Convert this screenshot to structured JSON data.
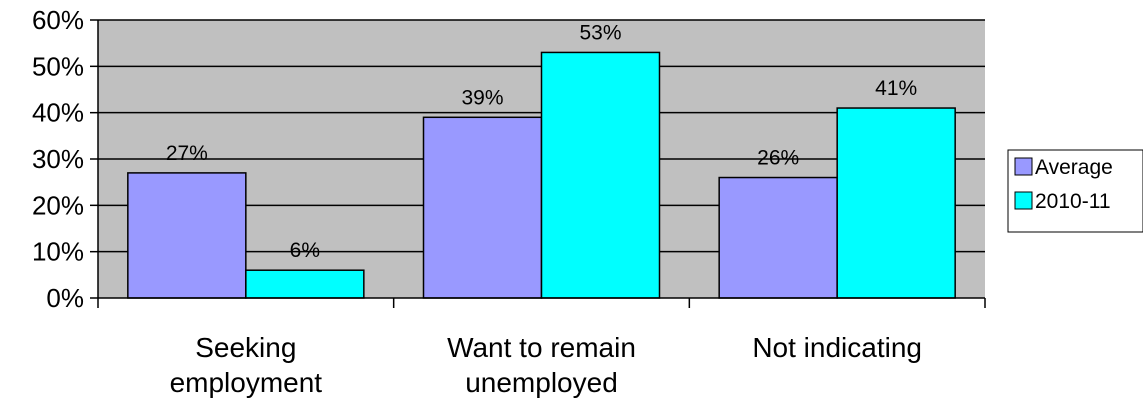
{
  "chart_data": {
    "type": "bar",
    "categories": [
      [
        "Seeking",
        "employment"
      ],
      [
        "Want to remain",
        "unemployed"
      ],
      [
        "Not indicating"
      ]
    ],
    "series": [
      {
        "name": "Average",
        "values": [
          27,
          39,
          26
        ],
        "labels": [
          "27%",
          "39%",
          "26%"
        ],
        "color": "#9999ff"
      },
      {
        "name": "2010-11",
        "values": [
          6,
          53,
          41
        ],
        "labels": [
          "6%",
          "53%",
          "41%"
        ],
        "color": "#00ffff"
      }
    ],
    "ylim": [
      0,
      60
    ],
    "yticks": [
      0,
      10,
      20,
      30,
      40,
      50,
      60
    ],
    "ytick_labels": [
      "0%",
      "10%",
      "20%",
      "30%",
      "40%",
      "50%",
      "60%"
    ],
    "grid": true,
    "plot_background": "#c0c0c0",
    "legend_position": "right",
    "title": "",
    "xlabel": "",
    "ylabel": ""
  }
}
